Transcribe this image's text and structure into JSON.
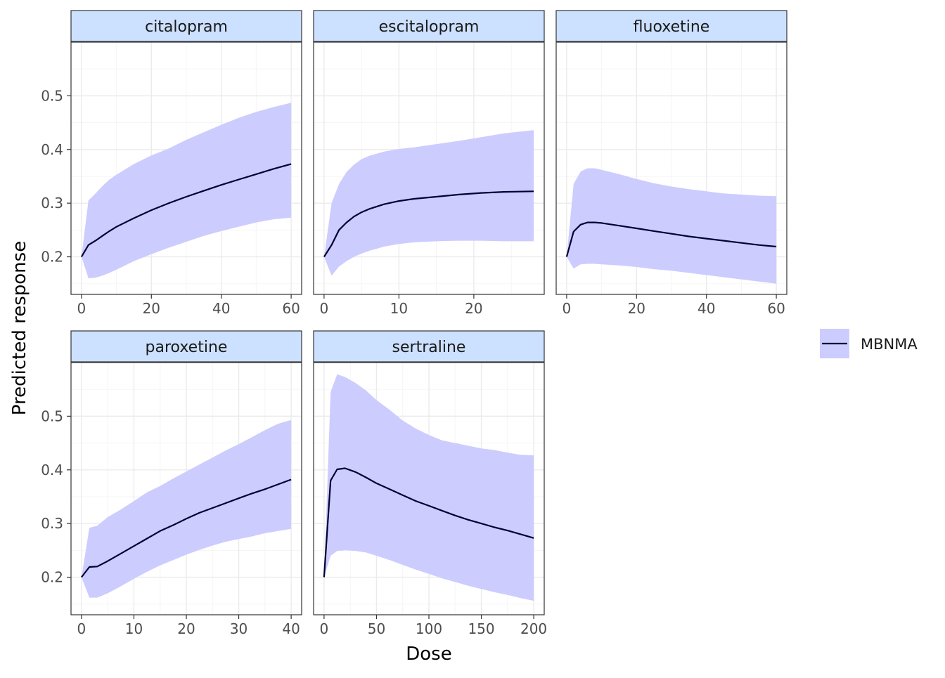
{
  "colors": {
    "ribbon_fill": "#ccccff",
    "line": "#000033",
    "strip_fill": "#cce0ff",
    "panel_border": "#333333",
    "grid_major": "#ebebeb",
    "grid_minor": "#f5f5f5",
    "tick_label": "#4d4d4d"
  },
  "chart_data": {
    "type": "line",
    "layout": "faceted ribbon-and-line panels, 3 columns x 2 rows, shared y scale",
    "xlabel": "Dose",
    "ylabel": "Predicted response",
    "ylim": [
      0.13,
      0.6
    ],
    "y_ticks": [
      0.2,
      0.3,
      0.4,
      0.5
    ],
    "y_tick_labels": [
      "0.2",
      "0.3",
      "0.4",
      "0.5"
    ],
    "grid": true,
    "legend": {
      "placement": "right",
      "entries": [
        {
          "label": "MBNMA",
          "symbol": "line-with-ribbon"
        }
      ]
    },
    "panels": [
      {
        "title": "citalopram",
        "xlim": [
          -3,
          63
        ],
        "x_ticks": [
          0,
          20,
          40,
          60
        ],
        "x_tick_labels": [
          "0",
          "20",
          "40",
          "60"
        ],
        "series": [
          {
            "name": "MBNMA",
            "x": [
              0,
              2,
              4,
              6,
              8,
              10,
              15,
              20,
              25,
              30,
              35,
              40,
              45,
              50,
              55,
              60
            ],
            "y": [
              0.2,
              0.222,
              0.23,
              0.239,
              0.248,
              0.256,
              0.272,
              0.287,
              0.3,
              0.312,
              0.323,
              0.334,
              0.344,
              0.354,
              0.364,
              0.373
            ],
            "lower": [
              0.2,
              0.16,
              0.161,
              0.165,
              0.17,
              0.176,
              0.192,
              0.205,
              0.217,
              0.228,
              0.239,
              0.248,
              0.256,
              0.264,
              0.27,
              0.273
            ],
            "upper": [
              0.2,
              0.305,
              0.318,
              0.332,
              0.344,
              0.353,
              0.373,
              0.389,
              0.402,
              0.418,
              0.432,
              0.446,
              0.459,
              0.47,
              0.479,
              0.487
            ]
          }
        ]
      },
      {
        "title": "escitalopram",
        "xlim": [
          -1.4,
          29.4
        ],
        "x_ticks": [
          0,
          10,
          20
        ],
        "x_tick_labels": [
          "0",
          "10",
          "20"
        ],
        "series": [
          {
            "name": "MBNMA",
            "x": [
              0,
              1,
              2,
              3,
              4,
              5,
              6,
              8,
              10,
              12,
              15,
              18,
              21,
              24,
              28
            ],
            "y": [
              0.2,
              0.222,
              0.25,
              0.264,
              0.275,
              0.283,
              0.289,
              0.298,
              0.304,
              0.308,
              0.312,
              0.316,
              0.319,
              0.321,
              0.322
            ],
            "lower": [
              0.2,
              0.165,
              0.182,
              0.192,
              0.2,
              0.206,
              0.211,
              0.219,
              0.224,
              0.227,
              0.229,
              0.23,
              0.23,
              0.229,
              0.229
            ],
            "upper": [
              0.2,
              0.3,
              0.336,
              0.358,
              0.372,
              0.382,
              0.388,
              0.396,
              0.401,
              0.404,
              0.41,
              0.416,
              0.423,
              0.43,
              0.436
            ]
          }
        ]
      },
      {
        "title": "fluoxetine",
        "xlim": [
          -3,
          63
        ],
        "x_ticks": [
          0,
          20,
          40,
          60
        ],
        "x_tick_labels": [
          "0",
          "20",
          "40",
          "60"
        ],
        "series": [
          {
            "name": "MBNMA",
            "x": [
              0,
              2,
              4,
              6,
              8,
              10,
              15,
              20,
              25,
              30,
              35,
              40,
              45,
              50,
              55,
              60
            ],
            "y": [
              0.2,
              0.247,
              0.26,
              0.264,
              0.264,
              0.263,
              0.258,
              0.253,
              0.248,
              0.243,
              0.238,
              0.234,
              0.23,
              0.226,
              0.222,
              0.219
            ],
            "lower": [
              0.2,
              0.178,
              0.186,
              0.187,
              0.187,
              0.186,
              0.184,
              0.181,
              0.177,
              0.174,
              0.17,
              0.166,
              0.162,
              0.158,
              0.154,
              0.15
            ],
            "upper": [
              0.2,
              0.336,
              0.359,
              0.365,
              0.365,
              0.362,
              0.354,
              0.345,
              0.337,
              0.331,
              0.326,
              0.322,
              0.318,
              0.316,
              0.314,
              0.313
            ]
          }
        ]
      },
      {
        "title": "paroxetine",
        "xlim": [
          -2,
          42
        ],
        "x_ticks": [
          0,
          10,
          20,
          30,
          40
        ],
        "x_tick_labels": [
          "0",
          "10",
          "20",
          "30",
          "40"
        ],
        "series": [
          {
            "name": "MBNMA",
            "x": [
              0,
              1.5,
              3,
              5,
              7.5,
              10,
              12.5,
              15,
              17.5,
              20,
              22.5,
              25,
              27.5,
              30,
              32.5,
              35,
              37.5,
              40
            ],
            "y": [
              0.2,
              0.219,
              0.22,
              0.23,
              0.244,
              0.258,
              0.272,
              0.286,
              0.297,
              0.309,
              0.32,
              0.329,
              0.338,
              0.347,
              0.356,
              0.364,
              0.373,
              0.382
            ],
            "lower": [
              0.2,
              0.162,
              0.162,
              0.17,
              0.183,
              0.197,
              0.21,
              0.222,
              0.232,
              0.242,
              0.251,
              0.259,
              0.266,
              0.271,
              0.276,
              0.282,
              0.286,
              0.29
            ],
            "upper": [
              0.2,
              0.292,
              0.296,
              0.312,
              0.326,
              0.342,
              0.358,
              0.37,
              0.384,
              0.397,
              0.41,
              0.423,
              0.436,
              0.448,
              0.461,
              0.474,
              0.486,
              0.493
            ]
          }
        ]
      },
      {
        "title": "sertraline",
        "xlim": [
          -10,
          210
        ],
        "x_ticks": [
          0,
          50,
          100,
          150,
          200
        ],
        "x_tick_labels": [
          "0",
          "50",
          "100",
          "150",
          "200"
        ],
        "series": [
          {
            "name": "MBNMA",
            "x": [
              0,
              6.25,
              12.5,
              20,
              30,
              40,
              50,
              62.5,
              75,
              87.5,
              100,
              112.5,
              125,
              137.5,
              150,
              162.5,
              175,
              187.5,
              200
            ],
            "y": [
              0.2,
              0.38,
              0.401,
              0.403,
              0.396,
              0.386,
              0.375,
              0.364,
              0.353,
              0.342,
              0.333,
              0.324,
              0.315,
              0.307,
              0.3,
              0.293,
              0.287,
              0.28,
              0.273
            ],
            "lower": [
              0.2,
              0.24,
              0.249,
              0.25,
              0.249,
              0.246,
              0.24,
              0.232,
              0.223,
              0.214,
              0.206,
              0.198,
              0.191,
              0.184,
              0.178,
              0.172,
              0.167,
              0.161,
              0.156
            ],
            "upper": [
              0.2,
              0.545,
              0.578,
              0.573,
              0.562,
              0.548,
              0.53,
              0.512,
              0.492,
              0.477,
              0.465,
              0.455,
              0.45,
              0.445,
              0.44,
              0.437,
              0.432,
              0.428,
              0.427
            ]
          }
        ]
      }
    ]
  }
}
